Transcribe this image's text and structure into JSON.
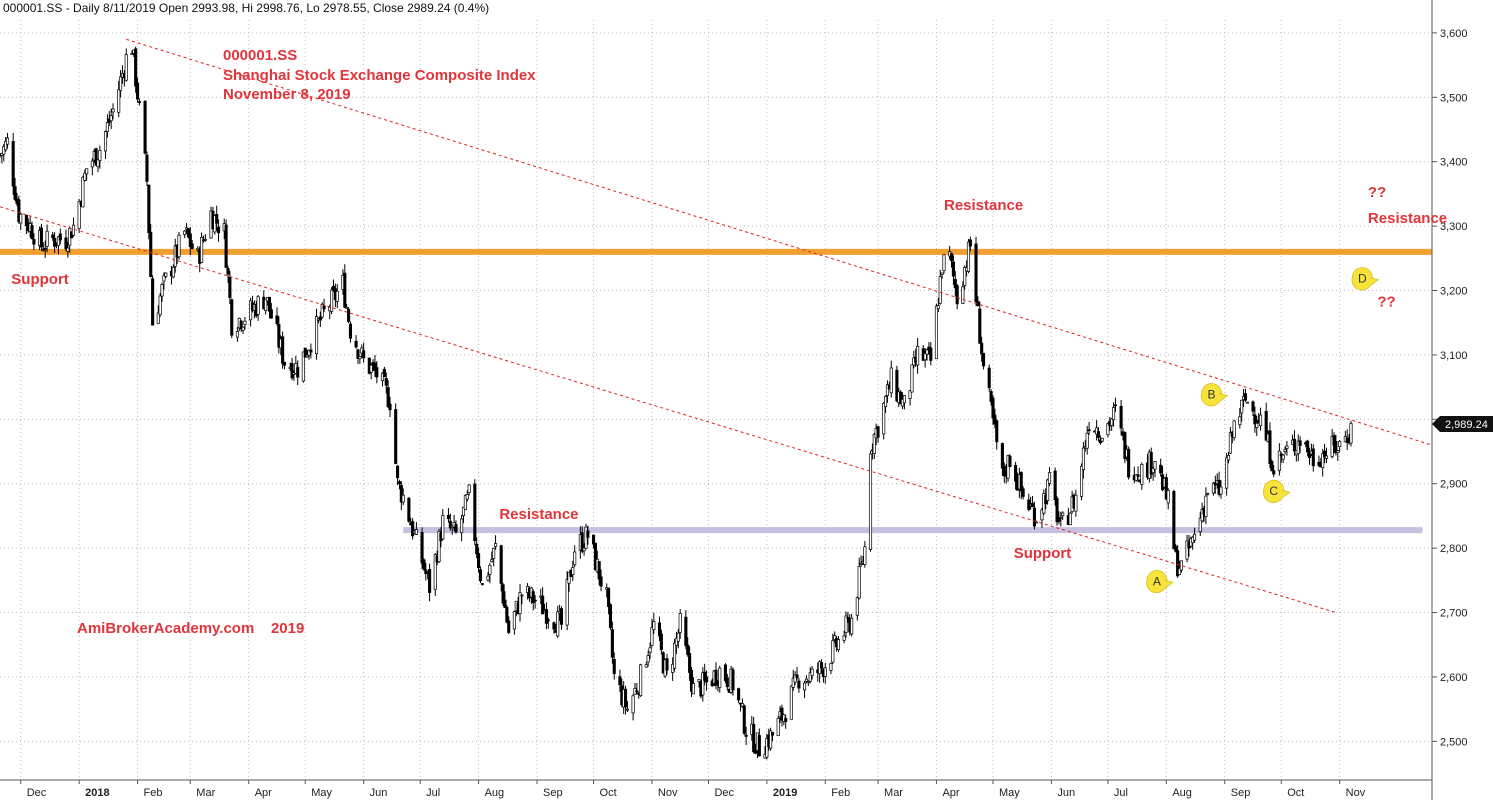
{
  "header_text": "000001.SS - Daily 8/11/2019 Open 2993.98, Hi 2998.76, Lo 2978.55, Close 2989.24 (0.4%)",
  "title_lines": [
    "000001.SS",
    "Shanghai Stock Exchange Composite Index",
    "November 8, 2019"
  ],
  "watermark": "AmiBrokerAcademy.com    2019",
  "last_price_label": "2,989.24",
  "colors": {
    "annotation": "#e0353a",
    "support_band_orange": "#f0a030",
    "support_band_lavender": "#c8c0e0",
    "trendline": "#e02020",
    "candle": "#000000",
    "marker": "#f7e33a",
    "grid": "#bbbbbb"
  },
  "chart_data": {
    "type": "candlestick",
    "ylim": [
      2440,
      3620
    ],
    "y_ticks": [
      2500,
      2600,
      2700,
      2800,
      2900,
      3000,
      3100,
      3200,
      3300,
      3400,
      3500,
      3600
    ],
    "y_tick_labels": [
      "2,500",
      "2,600",
      "2,700",
      "2,800",
      "2,900",
      "3,000",
      "3,100",
      "3,200",
      "3,300",
      "3,400",
      "3,500",
      "3,600"
    ],
    "x_range": [
      "2017-11-20",
      "2019-12-20"
    ],
    "month_ticks": [
      {
        "label": "Dec",
        "date": "2017-12-01"
      },
      {
        "label": "2018",
        "date": "2018-01-01",
        "bold": true
      },
      {
        "label": "Feb",
        "date": "2018-02-01"
      },
      {
        "label": "Mar",
        "date": "2018-03-01"
      },
      {
        "label": "Apr",
        "date": "2018-04-01"
      },
      {
        "label": "May",
        "date": "2018-05-01"
      },
      {
        "label": "Jun",
        "date": "2018-06-01"
      },
      {
        "label": "Jul",
        "date": "2018-07-01"
      },
      {
        "label": "Aug",
        "date": "2018-08-01"
      },
      {
        "label": "Sep",
        "date": "2018-09-01"
      },
      {
        "label": "Oct",
        "date": "2018-10-01"
      },
      {
        "label": "Nov",
        "date": "2018-11-01"
      },
      {
        "label": "Dec",
        "date": "2018-12-01"
      },
      {
        "label": "2019",
        "date": "2019-01-01",
        "bold": true
      },
      {
        "label": "Feb",
        "date": "2019-02-01"
      },
      {
        "label": "Mar",
        "date": "2019-03-01"
      },
      {
        "label": "Apr",
        "date": "2019-04-01"
      },
      {
        "label": "May",
        "date": "2019-05-01"
      },
      {
        "label": "Jun",
        "date": "2019-06-01"
      },
      {
        "label": "Jul",
        "date": "2019-07-01"
      },
      {
        "label": "Aug",
        "date": "2019-08-01"
      },
      {
        "label": "Sep",
        "date": "2019-09-01"
      },
      {
        "label": "Oct",
        "date": "2019-10-01"
      },
      {
        "label": "Nov",
        "date": "2019-11-01"
      }
    ],
    "price_path": [
      [
        "2017-11-20",
        3410
      ],
      [
        "2017-11-24",
        3430
      ],
      [
        "2017-11-30",
        3320
      ],
      [
        "2017-12-06",
        3300
      ],
      [
        "2017-12-12",
        3270
      ],
      [
        "2017-12-18",
        3280
      ],
      [
        "2017-12-25",
        3280
      ],
      [
        "2017-12-29",
        3300
      ],
      [
        "2018-01-05",
        3390
      ],
      [
        "2018-01-12",
        3420
      ],
      [
        "2018-01-19",
        3480
      ],
      [
        "2018-01-26",
        3560
      ],
      [
        "2018-01-29",
        3580
      ],
      [
        "2018-02-02",
        3480
      ],
      [
        "2018-02-06",
        3370
      ],
      [
        "2018-02-09",
        3150
      ],
      [
        "2018-02-14",
        3200
      ],
      [
        "2018-02-26",
        3290
      ],
      [
        "2018-03-05",
        3250
      ],
      [
        "2018-03-12",
        3320
      ],
      [
        "2018-03-19",
        3290
      ],
      [
        "2018-03-23",
        3150
      ],
      [
        "2018-03-30",
        3160
      ],
      [
        "2018-04-10",
        3190
      ],
      [
        "2018-04-20",
        3090
      ],
      [
        "2018-04-27",
        3080
      ],
      [
        "2018-05-10",
        3160
      ],
      [
        "2018-05-21",
        3210
      ],
      [
        "2018-05-25",
        3140
      ],
      [
        "2018-06-01",
        3090
      ],
      [
        "2018-06-08",
        3070
      ],
      [
        "2018-06-15",
        3030
      ],
      [
        "2018-06-19",
        2900
      ],
      [
        "2018-06-22",
        2880
      ],
      [
        "2018-07-02",
        2780
      ],
      [
        "2018-07-06",
        2740
      ],
      [
        "2018-07-13",
        2840
      ],
      [
        "2018-07-20",
        2820
      ],
      [
        "2018-07-27",
        2880
      ],
      [
        "2018-08-03",
        2740
      ],
      [
        "2018-08-10",
        2800
      ],
      [
        "2018-08-17",
        2670
      ],
      [
        "2018-08-24",
        2730
      ],
      [
        "2018-08-31",
        2720
      ],
      [
        "2018-09-07",
        2700
      ],
      [
        "2018-09-14",
        2680
      ],
      [
        "2018-09-21",
        2800
      ],
      [
        "2018-09-28",
        2820
      ],
      [
        "2018-10-08",
        2720
      ],
      [
        "2018-10-12",
        2600
      ],
      [
        "2018-10-19",
        2550
      ],
      [
        "2018-10-26",
        2600
      ],
      [
        "2018-11-02",
        2680
      ],
      [
        "2018-11-09",
        2600
      ],
      [
        "2018-11-16",
        2680
      ],
      [
        "2018-11-23",
        2580
      ],
      [
        "2018-11-30",
        2590
      ],
      [
        "2018-12-07",
        2610
      ],
      [
        "2018-12-14",
        2590
      ],
      [
        "2018-12-21",
        2520
      ],
      [
        "2018-12-28",
        2490
      ],
      [
        "2019-01-04",
        2510
      ],
      [
        "2019-01-11",
        2550
      ],
      [
        "2019-01-18",
        2600
      ],
      [
        "2019-01-25",
        2600
      ],
      [
        "2019-02-01",
        2620
      ],
      [
        "2019-02-15",
        2690
      ],
      [
        "2019-02-22",
        2800
      ],
      [
        "2019-02-25",
        2960
      ],
      [
        "2019-03-01",
        2990
      ],
      [
        "2019-03-08",
        3060
      ],
      [
        "2019-03-15",
        3020
      ],
      [
        "2019-03-22",
        3100
      ],
      [
        "2019-03-29",
        3090
      ],
      [
        "2019-04-04",
        3240
      ],
      [
        "2019-04-08",
        3250
      ],
      [
        "2019-04-12",
        3190
      ],
      [
        "2019-04-19",
        3270
      ],
      [
        "2019-04-26",
        3080
      ],
      [
        "2019-05-06",
        2910
      ],
      [
        "2019-05-10",
        2940
      ],
      [
        "2019-05-17",
        2880
      ],
      [
        "2019-05-24",
        2850
      ],
      [
        "2019-05-31",
        2900
      ],
      [
        "2019-06-06",
        2830
      ],
      [
        "2019-06-14",
        2880
      ],
      [
        "2019-06-21",
        3000
      ],
      [
        "2019-06-28",
        2980
      ],
      [
        "2019-07-05",
        3010
      ],
      [
        "2019-07-12",
        2930
      ],
      [
        "2019-07-19",
        2920
      ],
      [
        "2019-07-26",
        2940
      ],
      [
        "2019-08-02",
        2870
      ],
      [
        "2019-08-06",
        2780
      ],
      [
        "2019-08-09",
        2770
      ],
      [
        "2019-08-16",
        2820
      ],
      [
        "2019-08-23",
        2890
      ],
      [
        "2019-08-30",
        2890
      ],
      [
        "2019-09-06",
        2990
      ],
      [
        "2019-09-12",
        3030
      ],
      [
        "2019-09-20",
        3000
      ],
      [
        "2019-09-27",
        2930
      ],
      [
        "2019-10-11",
        2970
      ],
      [
        "2019-10-18",
        2940
      ],
      [
        "2019-10-25",
        2950
      ],
      [
        "2019-11-01",
        2960
      ],
      [
        "2019-11-08",
        2989
      ]
    ],
    "horizontal_levels": [
      {
        "name": "orange-support-resistance",
        "y": 3260,
        "x_from": "2017-11-20",
        "x_to": "2019-12-20",
        "color": "#f0a030"
      },
      {
        "name": "lavender-support-resistance",
        "y": 2828,
        "x_from": "2018-06-22",
        "x_to": "2019-12-15",
        "color": "#c8c0e0"
      }
    ],
    "trendlines": [
      {
        "name": "upper-trendline",
        "from": [
          "2018-01-26",
          3590
        ],
        "to": [
          "2019-12-20",
          2960
        ]
      },
      {
        "name": "lower-trendline",
        "from": [
          "2017-11-20",
          3330
        ],
        "to": [
          "2019-10-30",
          2700
        ]
      }
    ],
    "annotations": [
      {
        "text": "Support",
        "date": "2017-11-26",
        "y": 3210
      },
      {
        "text": "Resistance",
        "date": "2018-08-12",
        "y": 2845
      },
      {
        "text": "Resistance",
        "date": "2019-04-05",
        "y": 3325
      },
      {
        "text": "Support",
        "date": "2019-05-12",
        "y": 2785
      },
      {
        "text": "??",
        "date": "2019-11-16",
        "y": 3345
      },
      {
        "text": "Resistance",
        "date": "2019-11-16",
        "y": 3305
      },
      {
        "text": "??",
        "date": "2019-11-21",
        "y": 3175
      }
    ],
    "markers": [
      {
        "label": "A",
        "date": "2019-07-27",
        "y": 2750
      },
      {
        "label": "B",
        "date": "2019-08-25",
        "y": 3040
      },
      {
        "label": "C",
        "date": "2019-09-27",
        "y": 2890
      },
      {
        "label": "D",
        "date": "2019-11-13",
        "y": 3220
      }
    ]
  }
}
